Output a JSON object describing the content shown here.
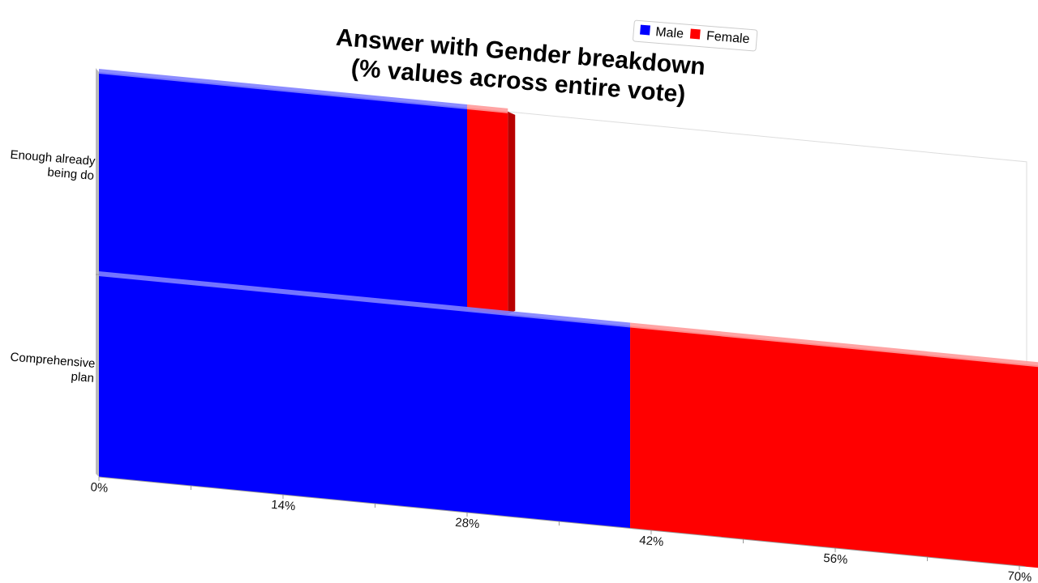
{
  "chart_data": {
    "type": "bar",
    "orientation": "horizontal",
    "stacked": true,
    "title_lines": [
      "Answer with Gender breakdown",
      "(% values across entire vote)"
    ],
    "categories": [
      "Enough already being do",
      "Comprehensive plan"
    ],
    "category_label_lines": [
      [
        "Enough already",
        "being do"
      ],
      [
        "Comprehensive",
        "plan"
      ]
    ],
    "series": [
      {
        "name": "Male",
        "values": [
          28.0,
          40.4
        ],
        "color": "#0000ff"
      },
      {
        "name": "Female",
        "values": [
          3.1,
          31.3
        ],
        "color": "#ff0000"
      }
    ],
    "xlim": [
      0,
      70
    ],
    "x_ticks": [
      "0%",
      "14%",
      "28%",
      "42%",
      "56%",
      "70%"
    ],
    "x_tick_values": [
      0,
      14,
      28,
      42,
      56,
      70
    ],
    "legend_position": "top-right",
    "grid": false
  }
}
